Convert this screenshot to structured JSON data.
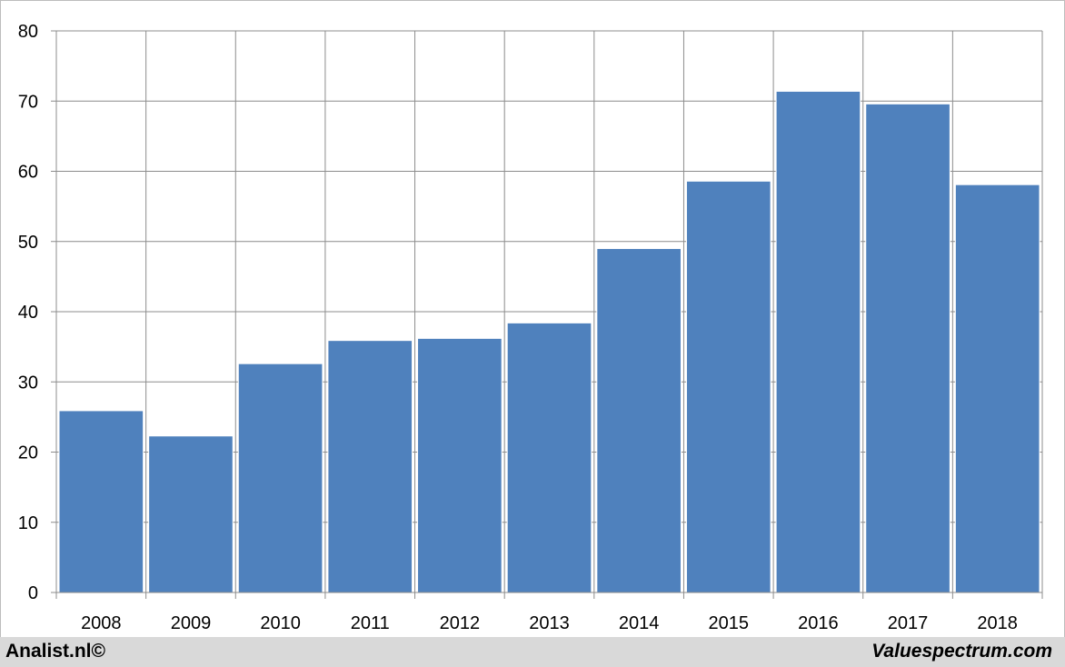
{
  "chart_data": {
    "type": "bar",
    "title": "",
    "xlabel": "",
    "ylabel": "",
    "categories": [
      "2008",
      "2009",
      "2010",
      "2011",
      "2012",
      "2013",
      "2014",
      "2015",
      "2016",
      "2017",
      "2018"
    ],
    "values": [
      25.9,
      22.3,
      32.6,
      35.9,
      36.2,
      38.4,
      49.0,
      58.6,
      71.4,
      69.6,
      58.1
    ],
    "ylim": [
      0,
      80
    ],
    "yticks": [
      "0",
      "10",
      "20",
      "30",
      "40",
      "50",
      "60",
      "70",
      "80"
    ],
    "grid": true,
    "legend": "none",
    "bar_color": "#4f81bd"
  },
  "footer": {
    "left_text": "Analist.nl©",
    "right_text": "Valuespectrum.com"
  }
}
